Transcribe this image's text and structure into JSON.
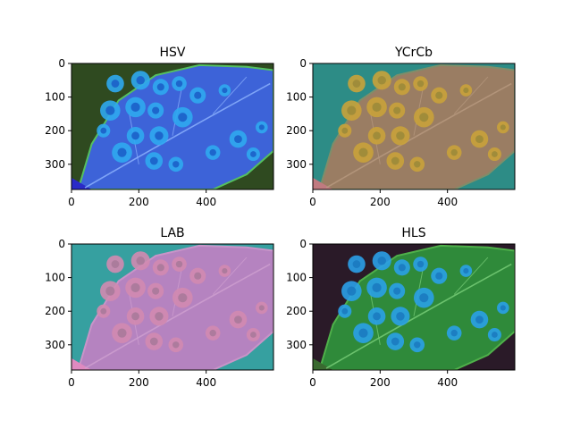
{
  "figure": {
    "background": "#ffffff"
  },
  "chart_data": [
    {
      "type": "heatmap",
      "title": "HSV",
      "image_width": 600,
      "image_height": 375,
      "xlim": [
        0,
        600
      ],
      "ylim": [
        375,
        0
      ],
      "xticks": [
        0,
        200,
        400
      ],
      "yticks": [
        0,
        100,
        200,
        300
      ],
      "xtick_labels": [
        "0",
        "200",
        "400"
      ],
      "ytick_labels": [
        "0",
        "100",
        "200",
        "300"
      ],
      "palette": {
        "background": "#2f4a20",
        "leaf": "#3d63d8",
        "leaf_edge": "#55c060",
        "spot": "#2fa8f0",
        "spot_core": "#1c5fc8",
        "vein": "#8fb4ff",
        "accent": "#2a2ac8"
      }
    },
    {
      "type": "heatmap",
      "title": "YCrCb",
      "image_width": 600,
      "image_height": 375,
      "xlim": [
        0,
        600
      ],
      "ylim": [
        375,
        0
      ],
      "xticks": [
        0,
        200,
        400
      ],
      "yticks": [
        0,
        100,
        200,
        300
      ],
      "xtick_labels": [
        "0",
        "200",
        "400"
      ],
      "ytick_labels": [
        "0",
        "100",
        "200",
        "300"
      ],
      "palette": {
        "background": "#2d8c86",
        "leaf": "#9a7d63",
        "leaf_edge": "#7e8e6a",
        "spot": "#c9a23a",
        "spot_core": "#9c8a3a",
        "vein": "#b89a80",
        "accent": "#c07a80"
      }
    },
    {
      "type": "heatmap",
      "title": "LAB",
      "image_width": 600,
      "image_height": 375,
      "xlim": [
        0,
        600
      ],
      "ylim": [
        375,
        0
      ],
      "xticks": [
        0,
        200,
        400
      ],
      "yticks": [
        0,
        100,
        200,
        300
      ],
      "xtick_labels": [
        "0",
        "200",
        "400"
      ],
      "ytick_labels": [
        "0",
        "100",
        "200",
        "300"
      ],
      "palette": {
        "background": "#36a0a0",
        "leaf": "#b583c0",
        "leaf_edge": "#c894c8",
        "spot": "#d28ab0",
        "spot_core": "#a87a9a",
        "vein": "#d0a0d0",
        "accent": "#e08ac0"
      }
    },
    {
      "type": "heatmap",
      "title": "HLS",
      "image_width": 600,
      "image_height": 375,
      "xlim": [
        0,
        600
      ],
      "ylim": [
        375,
        0
      ],
      "xticks": [
        0,
        200,
        400
      ],
      "yticks": [
        0,
        100,
        200,
        300
      ],
      "xtick_labels": [
        "0",
        "200",
        "400"
      ],
      "ytick_labels": [
        "0",
        "100",
        "200",
        "300"
      ],
      "palette": {
        "background": "#2a1a28",
        "leaf": "#2f8a3a",
        "leaf_edge": "#4fb04a",
        "spot": "#2aa0e8",
        "spot_core": "#1b7ac0",
        "vein": "#7ad07a",
        "accent": "#3a6a30"
      }
    }
  ]
}
